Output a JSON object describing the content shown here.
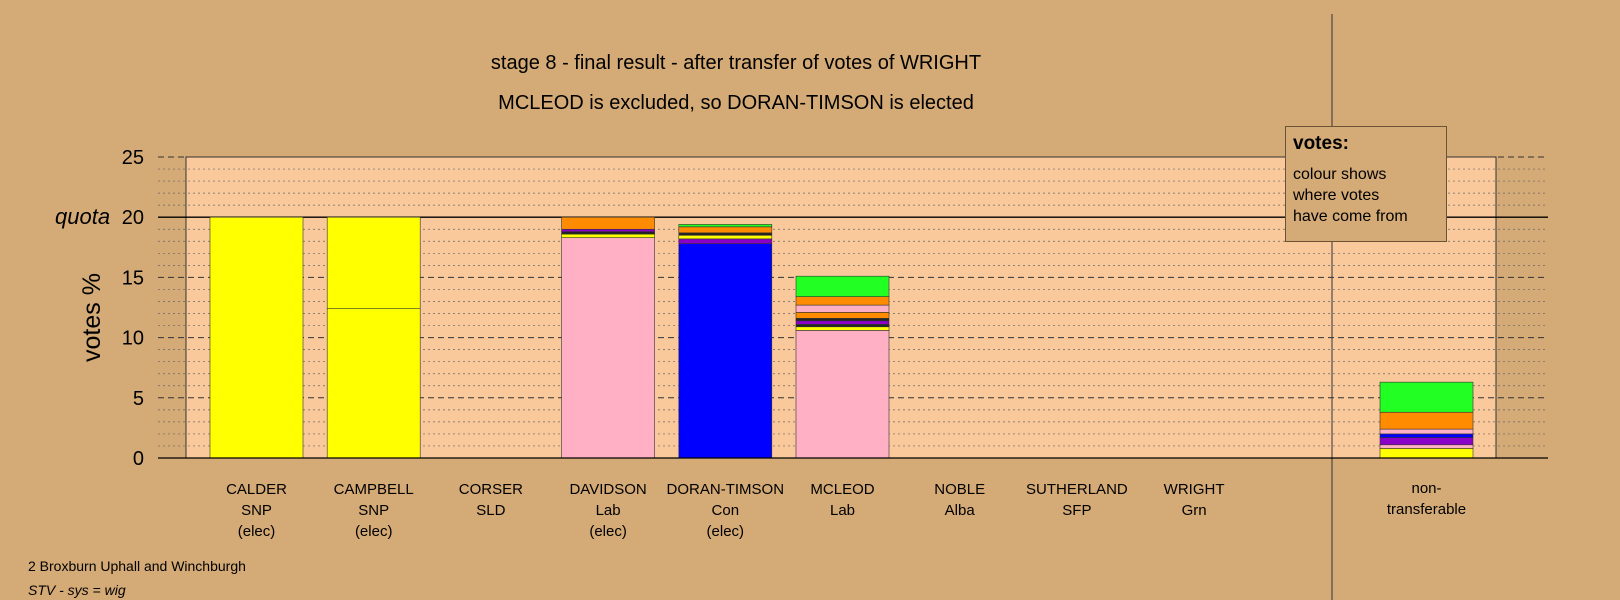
{
  "title": "stage 8 - final result - after transfer of votes of WRIGHT",
  "subtitle": "MCLEOD is excluded, so DORAN-TIMSON is elected",
  "legend": {
    "title": "votes:",
    "lines": [
      "colour shows",
      "where votes",
      "have come from"
    ]
  },
  "footer": {
    "ward": "2 Broxburn Uphall and Winchburgh",
    "system": "STV - sys = wig"
  },
  "colors": {
    "background": "#d4aa76",
    "plot_area": "#f9c89b",
    "SNP": "#ffff00",
    "Lab": "#ffb0c4",
    "Con": "#0000ff",
    "Grn": "#22ff22",
    "orange": "#ff8c00",
    "purple": "#8b00c8"
  },
  "chart_data": {
    "type": "bar",
    "stacked": true,
    "ylabel": "votes %",
    "ylim": [
      0,
      25
    ],
    "yticks": [
      "0",
      "5",
      "10",
      "15",
      "20",
      "25"
    ],
    "quota": {
      "label": "quota",
      "value": 20
    },
    "grid": true,
    "legend_position": "top-right",
    "candidates": [
      {
        "name": "CALDER",
        "party": "SNP",
        "note": "(elec)",
        "segments": [
          {
            "value": 20,
            "color": "#ffff00"
          }
        ]
      },
      {
        "name": "CAMPBELL",
        "party": "SNP",
        "note": "(elec)",
        "segments": [
          {
            "value": 12.4,
            "color": "#ffff00"
          },
          {
            "value": 7.6,
            "color": "#ffff00"
          }
        ]
      },
      {
        "name": "CORSER",
        "party": "SLD",
        "note": "",
        "segments": []
      },
      {
        "name": "DAVIDSON",
        "party": "Lab",
        "note": "(elec)",
        "segments": [
          {
            "value": 18.3,
            "color": "#ffb0c4"
          },
          {
            "value": 0.3,
            "color": "#ffff00"
          },
          {
            "value": 0.2,
            "color": "#222222"
          },
          {
            "value": 0.2,
            "color": "#8b00c8"
          },
          {
            "value": 1.0,
            "color": "#ff8c00"
          }
        ]
      },
      {
        "name": "DORAN-TIMSON",
        "party": "Con",
        "note": "(elec)",
        "segments": [
          {
            "value": 17.8,
            "color": "#0000ff"
          },
          {
            "value": 0.4,
            "color": "#8b00c8"
          },
          {
            "value": 0.3,
            "color": "#ffff00"
          },
          {
            "value": 0.2,
            "color": "#222222"
          },
          {
            "value": 0.5,
            "color": "#ff8c00"
          },
          {
            "value": 0.2,
            "color": "#22ff22"
          }
        ]
      },
      {
        "name": "MCLEOD",
        "party": "Lab",
        "note": "",
        "segments": [
          {
            "value": 10.6,
            "color": "#ffb0c4"
          },
          {
            "value": 0.3,
            "color": "#ffff00"
          },
          {
            "value": 0.2,
            "color": "#222222"
          },
          {
            "value": 0.3,
            "color": "#8b00c8"
          },
          {
            "value": 0.2,
            "color": "#222222"
          },
          {
            "value": 0.5,
            "color": "#ff8c00"
          },
          {
            "value": 0.6,
            "color": "#ffb0c4"
          },
          {
            "value": 0.7,
            "color": "#ff8c00"
          },
          {
            "value": 1.7,
            "color": "#22ff22"
          }
        ]
      },
      {
        "name": "NOBLE",
        "party": "Alba",
        "note": "",
        "segments": []
      },
      {
        "name": "SUTHERLAND",
        "party": "SFP",
        "note": "",
        "segments": []
      },
      {
        "name": "WRIGHT",
        "party": "Grn",
        "note": "",
        "segments": []
      }
    ],
    "nontransferable": {
      "label_lines": [
        "non-",
        "transferable"
      ],
      "segments": [
        {
          "value": 0.8,
          "color": "#ffff00"
        },
        {
          "value": 0.3,
          "color": "#ffb0c4"
        },
        {
          "value": 0.6,
          "color": "#8b00c8"
        },
        {
          "value": 0.3,
          "color": "#0000ff"
        },
        {
          "value": 0.4,
          "color": "#ffb0c4"
        },
        {
          "value": 1.4,
          "color": "#ff8c00"
        },
        {
          "value": 2.5,
          "color": "#22ff22"
        }
      ]
    }
  }
}
